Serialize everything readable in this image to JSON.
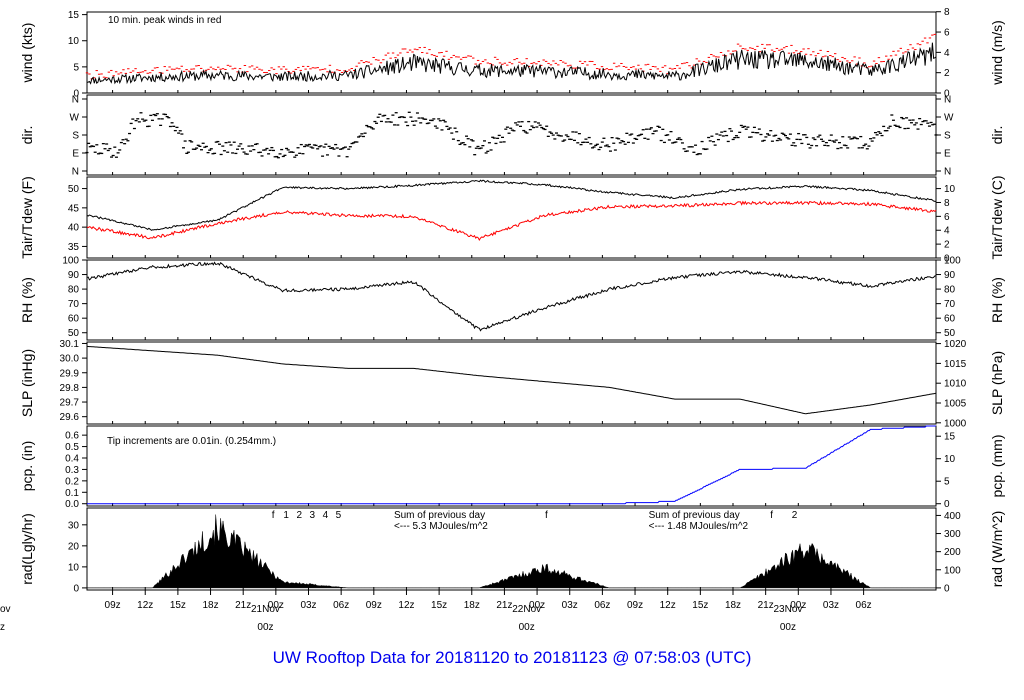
{
  "footer_title": "UW Rooftop Data for 20181120  to  20181123 @ 07:58:03  (UTC)",
  "colors": {
    "primary": "#000000",
    "peak": "#ff0000",
    "dew": "#ff0000",
    "precip": "#0000ff",
    "annotation": "#9900cc",
    "title": "#0000ee",
    "day_label": "#cc0000"
  },
  "x_axis": {
    "ticks": [
      "09z",
      "12z",
      "15z",
      "18z",
      "21z",
      "00z",
      "03z",
      "06z",
      "09z",
      "12z",
      "15z",
      "18z",
      "21z",
      "00z",
      "03z",
      "06z",
      "09z",
      "12z",
      "15z",
      "18z",
      "21z",
      "00z",
      "03z",
      "06z"
    ],
    "day_labels": [
      {
        "date": "21Nov",
        "hour": "00z"
      },
      {
        "date": "22Nov",
        "hour": "00z"
      },
      {
        "date": "23Nov",
        "hour": "00z"
      }
    ],
    "edge_fragments": [
      "ov",
      "z"
    ]
  },
  "panels": {
    "wind": {
      "left_label": "wind (kts)",
      "right_label": "wind (m/s)",
      "left_ticks": [
        "0",
        "5",
        "10",
        "15"
      ],
      "right_ticks": [
        "0",
        "2",
        "4",
        "6",
        "8"
      ],
      "note": "10 min. peak winds in red"
    },
    "dir": {
      "left_label": "dir.",
      "right_label": "dir.",
      "left_ticks": [
        "N",
        "E",
        "S",
        "W",
        "N"
      ],
      "right_ticks": [
        "N",
        "E",
        "S",
        "W",
        "N"
      ]
    },
    "temp": {
      "left_label": "Tair/Tdew (F)",
      "right_label": "Tair/Tdew (C)",
      "left_ticks": [
        "35",
        "40",
        "45",
        "50"
      ],
      "right_ticks": [
        "0",
        "2",
        "4",
        "6",
        "8",
        "10"
      ]
    },
    "rh": {
      "left_label": "RH (%)",
      "right_label": "RH (%)",
      "left_ticks": [
        "50",
        "60",
        "70",
        "80",
        "90",
        "100"
      ],
      "right_ticks": [
        "50",
        "60",
        "70",
        "80",
        "90",
        "100"
      ]
    },
    "slp": {
      "left_label": "SLP (inHg)",
      "right_label": "SLP (hPa)",
      "left_ticks": [
        "29.6",
        "29.7",
        "29.8",
        "29.9",
        "30.0",
        "30.1"
      ],
      "right_ticks": [
        "1000",
        "1005",
        "1010",
        "1015",
        "1020"
      ]
    },
    "pcp": {
      "left_label": "pcp. (in)",
      "right_label": "pcp. (mm)",
      "left_ticks": [
        "0.0",
        "0.1",
        "0.2",
        "0.3",
        "0.4",
        "0.5",
        "0.6"
      ],
      "right_ticks": [
        "0",
        "5",
        "10",
        "15"
      ],
      "note": "Tip increments are 0.01in. (0.254mm.)"
    },
    "rad": {
      "left_label": "rad(Lgly/hr)",
      "right_label": "rad (W/m^2)",
      "left_ticks": [
        "0",
        "10",
        "20",
        "30"
      ],
      "right_ticks": [
        "0",
        "100",
        "200",
        "300",
        "400"
      ],
      "hour_marks_day1": [
        "f",
        "1",
        "2",
        "3",
        "4",
        "5"
      ],
      "hour_marks_day2": [
        "f"
      ],
      "hour_marks_day3": [
        "f",
        "2"
      ],
      "sum_note_1": {
        "line1": "Sum of previous day",
        "line2": "<--- 5.3 MJoules/m^2"
      },
      "sum_note_2": {
        "line1": "Sum of previous day",
        "line2": "<--- 1.48 MJoules/m^2"
      }
    }
  },
  "chart_data": {
    "type": "line",
    "title": "UW Rooftop Data for 20181120  to  20181123 @ 07:58:03  (UTC)",
    "x_hours_from_start": [
      0,
      6,
      12,
      18,
      24,
      30,
      36,
      42,
      48,
      54,
      60,
      66,
      72,
      78
    ],
    "series": [
      {
        "name": "wind",
        "unit": "kts",
        "values": [
          2.4,
          3.0,
          3.4,
          3.1,
          3.4,
          5.7,
          4.3,
          4.2,
          3.6,
          3.2,
          6.4,
          6.1,
          4.2,
          7.6
        ]
      },
      {
        "name": "10 min. peak winds",
        "unit": "kts",
        "values": [
          3.4,
          4.3,
          4.8,
          4.4,
          4.7,
          8.3,
          6.2,
          5.8,
          5.1,
          4.4,
          8.7,
          8.2,
          5.5,
          10.6
        ]
      },
      {
        "name": "Tair",
        "unit": "F",
        "values": [
          43.2,
          39.3,
          41.8,
          50.3,
          50.0,
          50.8,
          52.0,
          51.0,
          49.0,
          47.6,
          49.8,
          50.6,
          49.5,
          46.8
        ]
      },
      {
        "name": "Tdew",
        "unit": "F",
        "values": [
          40.0,
          37.2,
          41.0,
          44.0,
          43.0,
          42.8,
          37.0,
          43.0,
          45.3,
          45.5,
          46.2,
          46.3,
          46.0,
          44.0
        ]
      },
      {
        "name": "RH",
        "unit": "%",
        "values": [
          87,
          95,
          98,
          79,
          80,
          85,
          52,
          67,
          80,
          88,
          92,
          88,
          82,
          89
        ]
      },
      {
        "name": "SLP",
        "unit": "inHg",
        "values": [
          30.08,
          30.05,
          30.02,
          29.96,
          29.93,
          29.93,
          29.88,
          29.84,
          29.8,
          29.72,
          29.72,
          29.62,
          29.68,
          29.76
        ]
      },
      {
        "name": "pcp",
        "unit": "in",
        "values": [
          0,
          0,
          0,
          0,
          0,
          0,
          0,
          0,
          0,
          0.02,
          0.3,
          0.31,
          0.65,
          0.68
        ]
      },
      {
        "name": "rad",
        "unit": "Lgly/hr",
        "values": [
          0,
          0,
          30,
          3,
          0,
          0,
          0,
          10,
          0,
          0,
          0,
          20,
          0,
          0
        ]
      }
    ],
    "wind_ylim": [
      0,
      15
    ],
    "temp_ylim": [
      33,
      52
    ],
    "rh_ylim": [
      45,
      100
    ],
    "slp_ylim": [
      29.55,
      30.1
    ],
    "pcp_ylim": [
      0,
      0.68
    ],
    "rad_ylim": [
      0,
      38
    ],
    "grid": false,
    "legend": "none"
  }
}
